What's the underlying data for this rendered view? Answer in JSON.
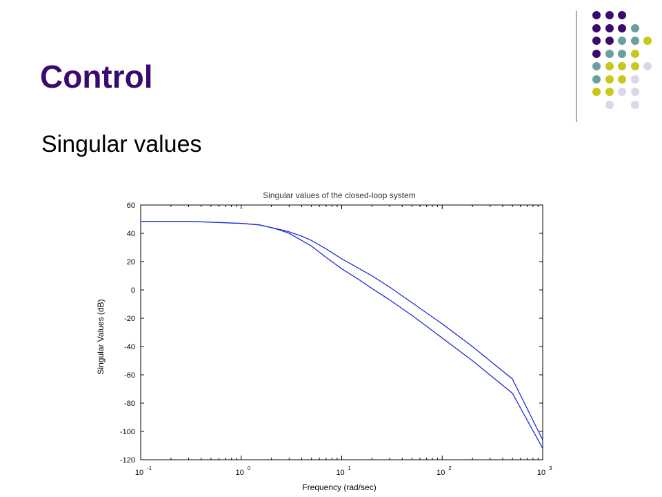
{
  "slide": {
    "title": "Control",
    "subtitle": "Singular values"
  },
  "decoration": {
    "dot_colors": [
      "#3b0a6e",
      "#6a9ea0",
      "#c8c81a",
      "#d8d8e8"
    ],
    "dot_rows": [
      [
        null,
        0,
        0,
        0,
        null,
        null
      ],
      [
        null,
        0,
        0,
        0,
        1,
        null
      ],
      [
        null,
        0,
        0,
        1,
        1,
        2
      ],
      [
        null,
        0,
        1,
        1,
        2,
        null
      ],
      [
        null,
        1,
        2,
        2,
        2,
        3
      ],
      [
        null,
        1,
        2,
        2,
        3,
        null
      ],
      [
        null,
        2,
        2,
        3,
        3,
        null
      ],
      [
        null,
        null,
        3,
        null,
        3,
        null
      ]
    ]
  },
  "chart_data": {
    "type": "line",
    "title": "Singular values of the closed-loop system",
    "xlabel": "Frequency (rad/sec)",
    "ylabel": "Singular Values (dB)",
    "x_scale": "log",
    "xlim": [
      0.1,
      1000
    ],
    "ylim": [
      -120,
      60
    ],
    "x_ticks": [
      {
        "base": "10",
        "exp": "-1"
      },
      {
        "base": "10",
        "exp": "0"
      },
      {
        "base": "10",
        "exp": "1"
      },
      {
        "base": "10",
        "exp": "2"
      },
      {
        "base": "10",
        "exp": "3"
      }
    ],
    "y_ticks": [
      "60",
      "40",
      "20",
      "0",
      "-20",
      "-40",
      "-60",
      "-80",
      "-100",
      "-120"
    ],
    "y_tick_values": [
      60,
      40,
      20,
      0,
      -20,
      -40,
      -60,
      -80,
      -100,
      -120
    ],
    "grid": false,
    "line_color": "#1f2bd6",
    "series": [
      {
        "x": [
          0.1,
          0.3,
          1,
          1.5,
          2,
          2.5,
          3,
          4,
          5,
          7,
          10,
          15,
          20,
          30,
          50,
          100,
          200,
          500,
          1000
        ],
        "values": [
          48.5,
          48.5,
          47,
          46,
          44,
          42.5,
          41,
          38,
          35,
          29,
          22,
          15,
          10,
          2,
          -9,
          -24,
          -40,
          -63,
          -106
        ]
      },
      {
        "x": [
          0.1,
          0.3,
          1,
          1.5,
          2,
          2.5,
          3,
          4,
          5,
          7,
          10,
          15,
          20,
          30,
          50,
          100,
          200,
          500,
          1000
        ],
        "values": [
          48.5,
          48.5,
          47,
          46,
          44,
          42,
          40,
          35,
          31,
          23,
          15,
          7,
          1,
          -7,
          -18,
          -34,
          -50,
          -73,
          -112
        ]
      }
    ]
  }
}
